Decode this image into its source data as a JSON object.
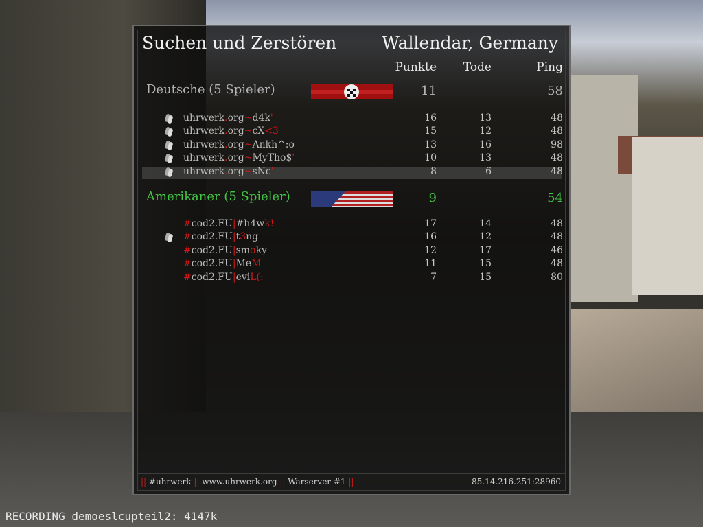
{
  "scoreboard": {
    "gametype": "Suchen und Zerstören",
    "map": "Wallendar, Germany",
    "columns": {
      "score": "Punkte",
      "deaths": "Tode",
      "ping": "Ping"
    },
    "teams": [
      {
        "name": "Deutsche (5 Spieler)",
        "color": "#b4b4b4",
        "flag": "german-flag",
        "score": "11",
        "deaths": "",
        "ping": "58",
        "players": [
          {
            "segments": [
              {
                "t": "uhrwerk",
                "c": "#bcbcbc"
              },
              {
                "t": ".",
                "c": "#d01818"
              },
              {
                "t": "org",
                "c": "#bcbcbc"
              },
              {
                "t": "~",
                "c": "#d01818"
              },
              {
                "t": "d4k",
                "c": "#bcbcbc"
              },
              {
                "t": "'",
                "c": "#d01818"
              }
            ],
            "dead": true,
            "score": "16",
            "deaths": "13",
            "ping": "48"
          },
          {
            "segments": [
              {
                "t": "uhrwerk",
                "c": "#bcbcbc"
              },
              {
                "t": ".",
                "c": "#d01818"
              },
              {
                "t": "org",
                "c": "#bcbcbc"
              },
              {
                "t": "~",
                "c": "#d01818"
              },
              {
                "t": "cX",
                "c": "#bcbcbc"
              },
              {
                "t": "<3",
                "c": "#d01818"
              }
            ],
            "dead": true,
            "score": "15",
            "deaths": "12",
            "ping": "48"
          },
          {
            "segments": [
              {
                "t": "uhrwerk",
                "c": "#bcbcbc"
              },
              {
                "t": ".",
                "c": "#d01818"
              },
              {
                "t": "org",
                "c": "#bcbcbc"
              },
              {
                "t": "~",
                "c": "#d01818"
              },
              {
                "t": "Ankh^:o",
                "c": "#bcbcbc"
              }
            ],
            "dead": true,
            "score": "13",
            "deaths": "16",
            "ping": "98"
          },
          {
            "segments": [
              {
                "t": "uhrwerk",
                "c": "#bcbcbc"
              },
              {
                "t": ".",
                "c": "#d01818"
              },
              {
                "t": "org",
                "c": "#bcbcbc"
              },
              {
                "t": "~",
                "c": "#d01818"
              },
              {
                "t": "MyTho$",
                "c": "#bcbcbc"
              },
              {
                "t": "'",
                "c": "#d01818"
              }
            ],
            "dead": true,
            "score": "10",
            "deaths": "13",
            "ping": "48"
          },
          {
            "segments": [
              {
                "t": "uhrwerk",
                "c": "#bcbcbc"
              },
              {
                "t": ".",
                "c": "#d01818"
              },
              {
                "t": "org",
                "c": "#bcbcbc"
              },
              {
                "t": "~",
                "c": "#d01818"
              },
              {
                "t": "sNc",
                "c": "#bcbcbc"
              },
              {
                "t": "'",
                "c": "#d01818"
              }
            ],
            "dead": true,
            "highlighted": true,
            "score": "8",
            "deaths": "6",
            "ping": "48"
          }
        ]
      },
      {
        "name": "Amerikaner (5 Spieler)",
        "color": "#44c444",
        "flag": "us-flag",
        "score": "9",
        "deaths": "",
        "ping": "54",
        "players": [
          {
            "segments": [
              {
                "t": "#",
                "c": "#d01818"
              },
              {
                "t": "cod2.FU",
                "c": "#bcbcbc"
              },
              {
                "t": "|",
                "c": "#d01818"
              },
              {
                "t": "#h4w",
                "c": "#bcbcbc"
              },
              {
                "t": "k!",
                "c": "#d01818"
              }
            ],
            "dead": false,
            "score": "17",
            "deaths": "14",
            "ping": "48"
          },
          {
            "segments": [
              {
                "t": "#",
                "c": "#d01818"
              },
              {
                "t": "cod2.FU",
                "c": "#bcbcbc"
              },
              {
                "t": "|",
                "c": "#d01818"
              },
              {
                "t": "t",
                "c": "#bcbcbc"
              },
              {
                "t": "3",
                "c": "#d01818"
              },
              {
                "t": "ng",
                "c": "#bcbcbc"
              }
            ],
            "dead": true,
            "score": "16",
            "deaths": "12",
            "ping": "48"
          },
          {
            "segments": [
              {
                "t": "#",
                "c": "#d01818"
              },
              {
                "t": "cod2.FU",
                "c": "#bcbcbc"
              },
              {
                "t": "|",
                "c": "#d01818"
              },
              {
                "t": "sm",
                "c": "#bcbcbc"
              },
              {
                "t": "o",
                "c": "#d01818"
              },
              {
                "t": "ky",
                "c": "#bcbcbc"
              }
            ],
            "dead": false,
            "score": "12",
            "deaths": "17",
            "ping": "46"
          },
          {
            "segments": [
              {
                "t": "#",
                "c": "#d01818"
              },
              {
                "t": "cod2.FU",
                "c": "#bcbcbc"
              },
              {
                "t": "|",
                "c": "#d01818"
              },
              {
                "t": "Me",
                "c": "#bcbcbc"
              },
              {
                "t": "M",
                "c": "#d01818"
              }
            ],
            "dead": false,
            "score": "11",
            "deaths": "15",
            "ping": "48"
          },
          {
            "segments": [
              {
                "t": "#",
                "c": "#d01818"
              },
              {
                "t": "cod2.FU",
                "c": "#bcbcbc"
              },
              {
                "t": "|",
                "c": "#d01818"
              },
              {
                "t": "evi",
                "c": "#bcbcbc"
              },
              {
                "t": "L(:",
                "c": "#d01818"
              }
            ],
            "dead": false,
            "score": "7",
            "deaths": "15",
            "ping": "80"
          }
        ]
      }
    ],
    "footer": {
      "segments": [
        {
          "t": "|| ",
          "c": "#d01818"
        },
        {
          "t": "#uhrwerk ",
          "c": "#d0d0d0"
        },
        {
          "t": "|| ",
          "c": "#d01818"
        },
        {
          "t": "www.uhrwerk.org ",
          "c": "#d0d0d0"
        },
        {
          "t": "|| ",
          "c": "#d01818"
        },
        {
          "t": "Warserver #1 ",
          "c": "#d0d0d0"
        },
        {
          "t": "||",
          "c": "#d01818"
        }
      ],
      "server_address": "85.14.216.251:28960"
    }
  },
  "recording_status": "RECORDING demoeslcupteil2: 4147k"
}
